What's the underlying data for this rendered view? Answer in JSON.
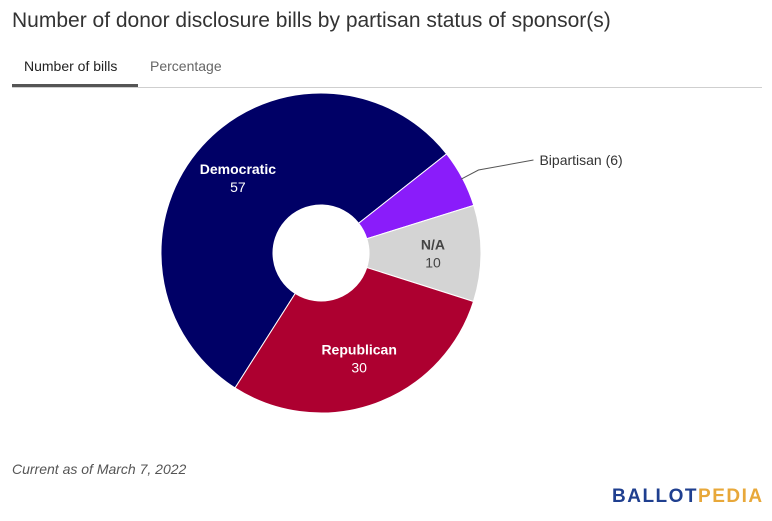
{
  "title": "Number of donor disclosure bills by partisan status of sponsor(s)",
  "tabs": [
    {
      "label": "Number of bills",
      "active": true
    },
    {
      "label": "Percentage",
      "active": false
    }
  ],
  "footnote": "Current as of March 7, 2022",
  "logo": {
    "part1": "BALLOT",
    "part2": "PEDIA"
  },
  "chart_data": {
    "type": "pie",
    "donut": true,
    "slices": [
      {
        "name": "Democratic",
        "value": 57,
        "color": "#000066",
        "label_color": "#ffffff",
        "label_style": "inside"
      },
      {
        "name": "Bipartisan",
        "value": 6,
        "color": "#8a1cfa",
        "label_text": "Bipartisan (6)",
        "label_color": "#333333",
        "label_style": "outside"
      },
      {
        "name": "N/A",
        "value": 10,
        "color": "#d4d4d4",
        "label_color": "#444444",
        "label_style": "inside"
      },
      {
        "name": "Republican",
        "value": 30,
        "color": "#ad0030",
        "label_color": "#ffffff",
        "label_style": "inside"
      }
    ],
    "legend": "none"
  }
}
